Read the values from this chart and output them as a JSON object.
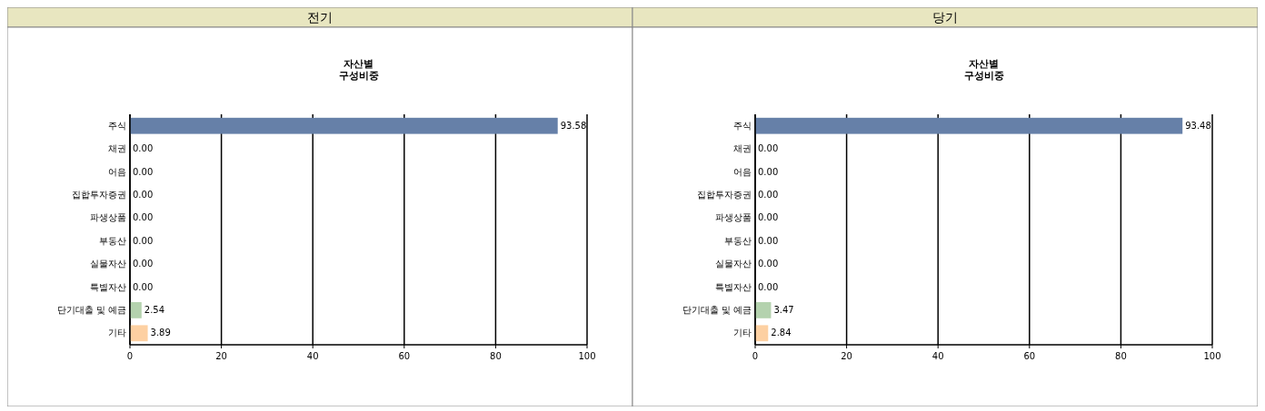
{
  "chart_data": [
    {
      "type": "bar",
      "orientation": "horizontal",
      "title": "전기",
      "subtitle": "자산별 구성비중",
      "categories": [
        "주식",
        "채권",
        "어음",
        "집합투자증권",
        "파생상품",
        "부동산",
        "실물자산",
        "특별자산",
        "단기대출 및 예금",
        "기타"
      ],
      "values": [
        93.58,
        0,
        0,
        0,
        0,
        0,
        0,
        0,
        2.54,
        3.89
      ],
      "colors": [
        "#6680a8",
        "#6680a8",
        "#6680a8",
        "#6680a8",
        "#6680a8",
        "#6680a8",
        "#6680a8",
        "#6680a8",
        "#b4d2ae",
        "#fdd0a2"
      ],
      "value_labels": [
        "93.58",
        "0.00",
        "0.00",
        "0.00",
        "0.00",
        "0.00",
        "0.00",
        "0.00",
        "2.54",
        "3.89"
      ],
      "xlim": [
        0,
        100
      ],
      "xticks": [
        0,
        20,
        40,
        60,
        80,
        100
      ],
      "grid": "x"
    },
    {
      "type": "bar",
      "orientation": "horizontal",
      "title": "당기",
      "subtitle": "자산별 구성비중",
      "categories": [
        "주식",
        "채권",
        "어음",
        "집합투자증권",
        "파생상품",
        "부동산",
        "실물자산",
        "특별자산",
        "단기대출 및 예금",
        "기타"
      ],
      "values": [
        93.48,
        0,
        0,
        0,
        0,
        0,
        0,
        0,
        3.47,
        2.84
      ],
      "colors": [
        "#6680a8",
        "#6680a8",
        "#6680a8",
        "#6680a8",
        "#6680a8",
        "#6680a8",
        "#6680a8",
        "#6680a8",
        "#b4d2ae",
        "#fdd0a2"
      ],
      "value_labels": [
        "93.48",
        "0.00",
        "0.00",
        "0.00",
        "0.00",
        "0.00",
        "0.00",
        "0.00",
        "3.47",
        "2.84"
      ],
      "xlim": [
        0,
        100
      ],
      "xticks": [
        0,
        20,
        40,
        60,
        80,
        100
      ],
      "grid": "x"
    }
  ]
}
